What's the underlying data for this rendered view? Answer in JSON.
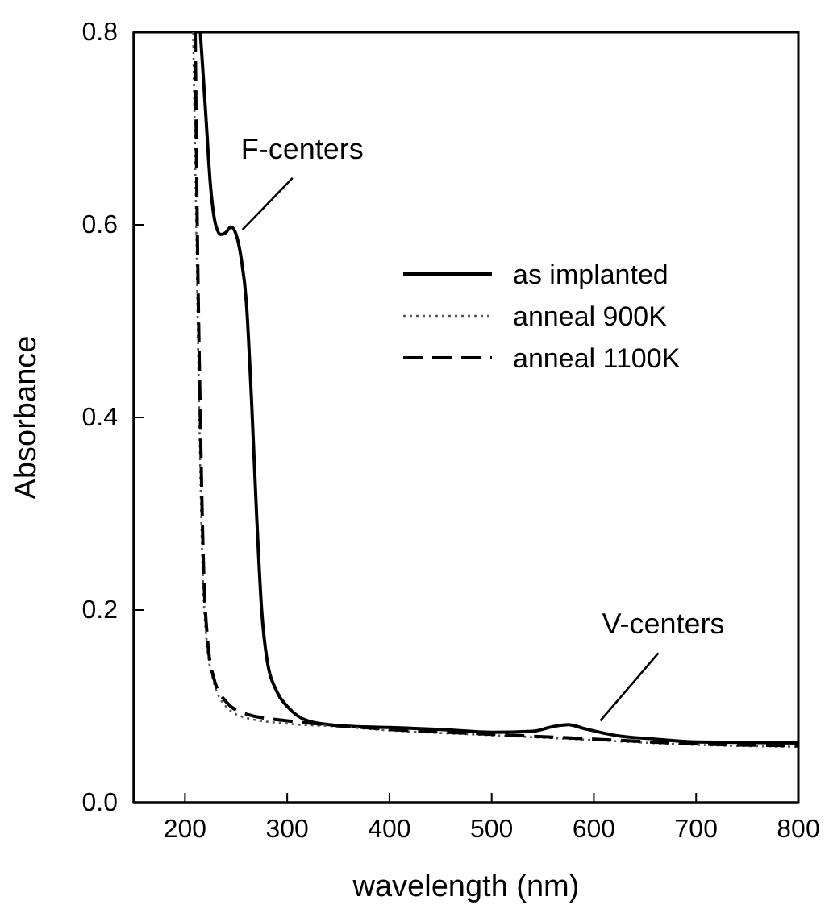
{
  "chart_data": {
    "type": "line",
    "xlabel": "wavelength (nm)",
    "ylabel": "Absorbance",
    "xlim": [
      150,
      800
    ],
    "xticks": [
      200,
      300,
      400,
      500,
      600,
      700,
      800
    ],
    "ylim": [
      0,
      0.8
    ],
    "yticks": [
      {
        "value": 0,
        "label": "0.0"
      },
      {
        "value": 0.2,
        "label": "0.2"
      },
      {
        "value": 0.4,
        "label": "0.4"
      },
      {
        "value": 0.6,
        "label": "0.6"
      },
      {
        "value": 0.8,
        "label": "0.8"
      }
    ],
    "legend": "top right",
    "grid": false,
    "series": [
      {
        "name": "as implanted",
        "color": "#000000",
        "line_style": "solid",
        "x": [
          215,
          220,
          225,
          230,
          235,
          240,
          245,
          250,
          255,
          260,
          265,
          270,
          275,
          280,
          290,
          300,
          320,
          350,
          400,
          450,
          500,
          540,
          560,
          575,
          590,
          620,
          660,
          700,
          800
        ],
        "values": [
          0.8,
          0.72,
          0.64,
          0.6,
          0.59,
          0.592,
          0.598,
          0.59,
          0.565,
          0.52,
          0.42,
          0.3,
          0.2,
          0.15,
          0.115,
          0.1,
          0.085,
          0.08,
          0.078,
          0.076,
          0.073,
          0.074,
          0.079,
          0.081,
          0.077,
          0.07,
          0.066,
          0.063,
          0.062
        ]
      },
      {
        "name": "anneal 900K",
        "color": "#555555",
        "line_style": "dotted",
        "x": [
          208,
          211,
          214,
          217,
          221,
          227,
          240,
          260,
          300,
          350,
          400,
          500,
          600,
          700,
          800
        ],
        "values": [
          0.8,
          0.6,
          0.4,
          0.25,
          0.17,
          0.13,
          0.1,
          0.088,
          0.082,
          0.079,
          0.075,
          0.07,
          0.065,
          0.06,
          0.058
        ]
      },
      {
        "name": "anneal 1100K",
        "color": "#000000",
        "line_style": "dashed",
        "x": [
          210,
          212,
          215,
          218,
          222,
          228,
          240,
          260,
          300,
          350,
          400,
          500,
          600,
          700,
          800
        ],
        "values": [
          0.8,
          0.6,
          0.4,
          0.25,
          0.17,
          0.13,
          0.105,
          0.092,
          0.085,
          0.08,
          0.076,
          0.071,
          0.066,
          0.061,
          0.059
        ]
      }
    ],
    "annotations": [
      {
        "text": "F-centers",
        "x": 250,
        "y": 0.59
      },
      {
        "text": "V-centers",
        "x": 600,
        "y": 0.08
      }
    ]
  }
}
